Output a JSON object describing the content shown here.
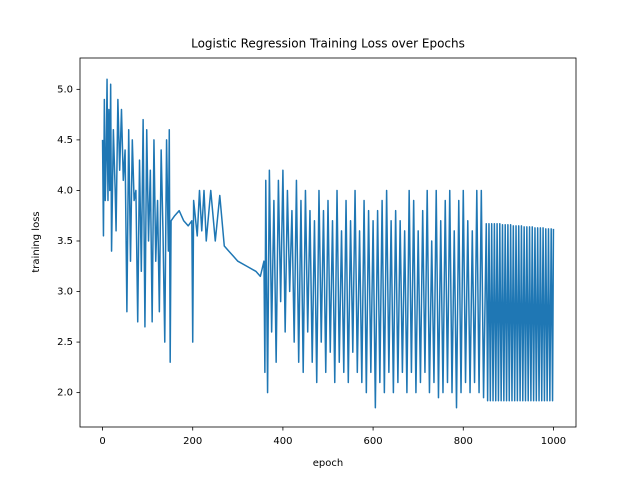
{
  "chart_data": {
    "type": "line",
    "title": "Logistic Regression Training Loss over Epochs",
    "xlabel": "epoch",
    "ylabel": "training loss",
    "color": "#1f77b4",
    "xlim": [
      -50,
      1050
    ],
    "ylim": [
      1.66,
      5.31
    ],
    "xticks": [
      0,
      200,
      400,
      600,
      800,
      1000
    ],
    "yticks": [
      {
        "value": 2,
        "label": "2.0"
      },
      {
        "value": 2.5,
        "label": "2.5"
      },
      {
        "value": 3,
        "label": "3.0"
      },
      {
        "value": 3.5,
        "label": "3.5"
      },
      {
        "value": 4,
        "label": "4.0"
      },
      {
        "value": 4.5,
        "label": "4.5"
      },
      {
        "value": 5,
        "label": "5.0"
      }
    ],
    "x": [
      0,
      2,
      4,
      6,
      8,
      10,
      12,
      14,
      16,
      18,
      20,
      24,
      28,
      30,
      34,
      38,
      42,
      46,
      50,
      54,
      58,
      62,
      66,
      70,
      74,
      78,
      82,
      86,
      90,
      94,
      98,
      102,
      106,
      110,
      114,
      118,
      122,
      126,
      130,
      134,
      138,
      142,
      146,
      148,
      150,
      152,
      160,
      170,
      180,
      190,
      198,
      200,
      202,
      210,
      215,
      220,
      225,
      230,
      240,
      250,
      260,
      270,
      280,
      290,
      300,
      320,
      340,
      350,
      358,
      360,
      362,
      366,
      370,
      375,
      380,
      385,
      390,
      395,
      400,
      405,
      410,
      415,
      420,
      425,
      430,
      435,
      440,
      445,
      450,
      455,
      460,
      465,
      470,
      475,
      480,
      485,
      490,
      495,
      500,
      505,
      510,
      515,
      520,
      525,
      530,
      535,
      540,
      545,
      550,
      555,
      560,
      565,
      570,
      575,
      580,
      585,
      590,
      595,
      600,
      605,
      610,
      615,
      620,
      625,
      630,
      635,
      640,
      645,
      650,
      655,
      660,
      665,
      670,
      675,
      680,
      685,
      690,
      695,
      700,
      705,
      710,
      715,
      720,
      725,
      730,
      735,
      740,
      745,
      750,
      755,
      760,
      765,
      770,
      775,
      780,
      785,
      790,
      795,
      800,
      805,
      810,
      815,
      820,
      825,
      830,
      835,
      840,
      845,
      851,
      854,
      857,
      860,
      863,
      866,
      869,
      872,
      875,
      878,
      881,
      884,
      887,
      890,
      893,
      896,
      899,
      902,
      905,
      908,
      911,
      914,
      917,
      920,
      923,
      926,
      929,
      932,
      935,
      938,
      941,
      944,
      947,
      950,
      953,
      956,
      959,
      962,
      965,
      968,
      971,
      974,
      977,
      980,
      983,
      986,
      989,
      992,
      995,
      998,
      1000
    ],
    "values": [
      4.5,
      3.55,
      4.9,
      3.9,
      4.3,
      5.1,
      3.9,
      4.8,
      4.0,
      5.05,
      3.4,
      4.6,
      4.0,
      3.6,
      4.9,
      4.2,
      4.8,
      4.1,
      4.4,
      2.8,
      4.6,
      3.3,
      4.5,
      3.9,
      4.0,
      2.7,
      4.3,
      3.2,
      4.7,
      2.65,
      4.6,
      3.5,
      4.2,
      2.7,
      4.5,
      3.3,
      3.9,
      2.8,
      4.4,
      3.6,
      2.5,
      4.5,
      3.4,
      4.6,
      2.3,
      3.7,
      3.75,
      3.8,
      3.7,
      3.65,
      3.7,
      2.5,
      3.9,
      3.55,
      4.0,
      3.6,
      4.0,
      3.5,
      4.0,
      3.5,
      3.95,
      3.45,
      3.4,
      3.35,
      3.3,
      3.25,
      3.2,
      3.15,
      3.3,
      2.2,
      4.1,
      2.0,
      4.2,
      2.6,
      3.9,
      2.3,
      4.1,
      2.9,
      4.2,
      2.6,
      4.0,
      3.0,
      3.8,
      2.5,
      4.1,
      2.3,
      3.9,
      2.2,
      4.0,
      2.6,
      3.8,
      2.3,
      3.7,
      2.1,
      4.0,
      2.5,
      3.8,
      2.2,
      3.9,
      2.4,
      3.7,
      2.1,
      4.0,
      2.3,
      3.6,
      2.2,
      3.9,
      2.1,
      3.7,
      2.4,
      4.0,
      2.2,
      3.6,
      2.1,
      3.9,
      2.0,
      3.8,
      2.2,
      3.7,
      1.85,
      3.8,
      2.1,
      3.9,
      2.0,
      4.0,
      2.2,
      3.7,
      2.0,
      3.8,
      2.1,
      3.7,
      2.2,
      3.6,
      2.0,
      4.0,
      2.2,
      3.9,
      2.0,
      3.6,
      2.1,
      3.8,
      2.2,
      4.0,
      2.0,
      3.5,
      2.1,
      4.0,
      1.95,
      3.7,
      2.0,
      3.9,
      2.1,
      4.0,
      2.0,
      3.6,
      1.85,
      3.9,
      2.0,
      4.0,
      2.1,
      3.7,
      2.0,
      3.6,
      2.1,
      4.0,
      2.0,
      4.0,
      1.95,
      3.67,
      1.92,
      3.67,
      1.92,
      3.67,
      1.92,
      3.67,
      1.92,
      3.67,
      1.92,
      3.67,
      1.92,
      3.66,
      1.92,
      3.66,
      1.92,
      3.66,
      1.92,
      3.66,
      1.92,
      3.65,
      1.92,
      3.65,
      1.92,
      3.65,
      1.92,
      3.65,
      1.92,
      3.64,
      1.92,
      3.64,
      1.92,
      3.64,
      1.92,
      3.64,
      1.92,
      3.63,
      1.92,
      3.63,
      1.92,
      3.63,
      1.92,
      3.63,
      1.92,
      3.62,
      1.92,
      3.62,
      1.92,
      3.62,
      1.92,
      3.62
    ]
  }
}
